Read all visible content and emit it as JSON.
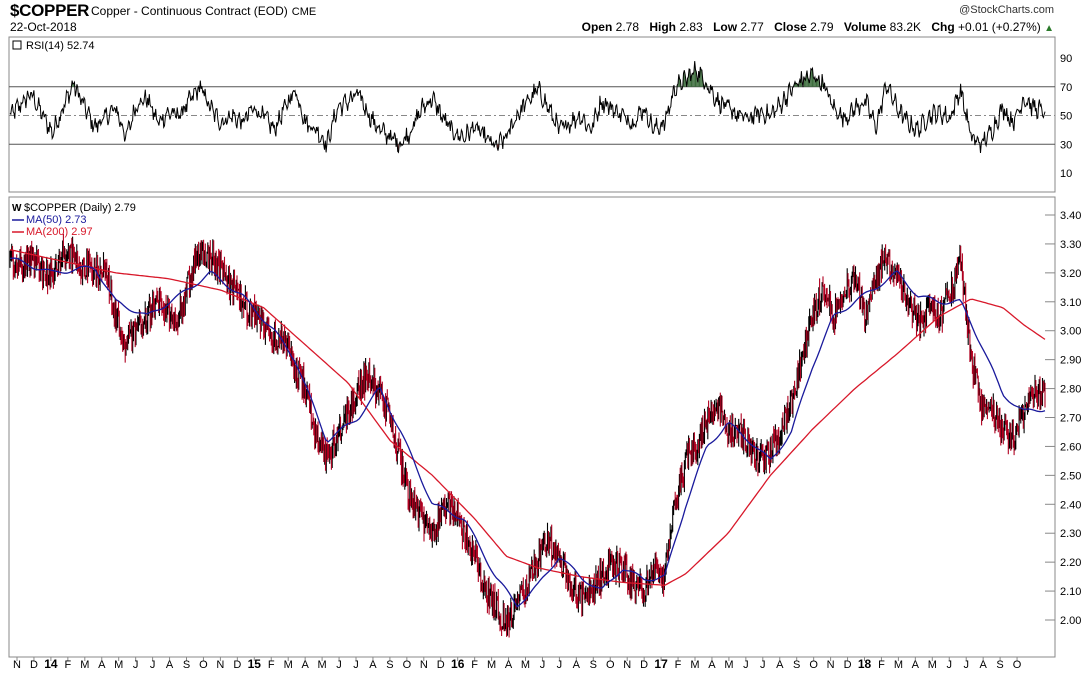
{
  "header": {
    "symbol": "$COPPER",
    "description": "Copper - Continuous Contract (EOD)",
    "exchange": "CME",
    "date": "22-Oct-2018",
    "brand": "@StockCharts.com",
    "open_label": "Open",
    "open": "2.78",
    "high_label": "High",
    "high": "2.83",
    "low_label": "Low",
    "low": "2.77",
    "close_label": "Close",
    "close": "2.79",
    "volume_label": "Volume",
    "volume": "83.2K",
    "chg_label": "Chg",
    "chg": "+0.01 (+0.27%)",
    "chg_arrow": "▲"
  },
  "rsi_panel": {
    "legend": "RSI(14) 52.74",
    "overbought": 70,
    "oversold": 30,
    "center": 50,
    "ylim": [
      0,
      100
    ],
    "ticks": [
      "90",
      "70",
      "50",
      "30",
      "10"
    ]
  },
  "price_panel": {
    "legend_symbol": "$COPPER (Daily) 2.79",
    "legend_ma50": "MA(50) 2.73",
    "legend_ma200": "MA(200) 2.97",
    "ticks": [
      "3.40",
      "3.30",
      "3.20",
      "3.10",
      "3.00",
      "2.90",
      "2.80",
      "2.70",
      "2.60",
      "2.50",
      "2.40",
      "2.30",
      "2.20",
      "2.10",
      "2.00"
    ]
  },
  "x_axis": {
    "labels": [
      {
        "t": "N",
        "year": false
      },
      {
        "t": "D",
        "year": false
      },
      {
        "t": "14",
        "year": true
      },
      {
        "t": "F",
        "year": false
      },
      {
        "t": "M",
        "year": false
      },
      {
        "t": "A",
        "year": false
      },
      {
        "t": "M",
        "year": false
      },
      {
        "t": "J",
        "year": false
      },
      {
        "t": "J",
        "year": false
      },
      {
        "t": "A",
        "year": false
      },
      {
        "t": "S",
        "year": false
      },
      {
        "t": "O",
        "year": false
      },
      {
        "t": "N",
        "year": false
      },
      {
        "t": "D",
        "year": false
      },
      {
        "t": "15",
        "year": true
      },
      {
        "t": "F",
        "year": false
      },
      {
        "t": "M",
        "year": false
      },
      {
        "t": "A",
        "year": false
      },
      {
        "t": "M",
        "year": false
      },
      {
        "t": "J",
        "year": false
      },
      {
        "t": "J",
        "year": false
      },
      {
        "t": "A",
        "year": false
      },
      {
        "t": "S",
        "year": false
      },
      {
        "t": "O",
        "year": false
      },
      {
        "t": "N",
        "year": false
      },
      {
        "t": "D",
        "year": false
      },
      {
        "t": "16",
        "year": true
      },
      {
        "t": "F",
        "year": false
      },
      {
        "t": "M",
        "year": false
      },
      {
        "t": "A",
        "year": false
      },
      {
        "t": "M",
        "year": false
      },
      {
        "t": "J",
        "year": false
      },
      {
        "t": "J",
        "year": false
      },
      {
        "t": "A",
        "year": false
      },
      {
        "t": "S",
        "year": false
      },
      {
        "t": "O",
        "year": false
      },
      {
        "t": "N",
        "year": false
      },
      {
        "t": "D",
        "year": false
      },
      {
        "t": "17",
        "year": true
      },
      {
        "t": "F",
        "year": false
      },
      {
        "t": "M",
        "year": false
      },
      {
        "t": "A",
        "year": false
      },
      {
        "t": "M",
        "year": false
      },
      {
        "t": "J",
        "year": false
      },
      {
        "t": "J",
        "year": false
      },
      {
        "t": "A",
        "year": false
      },
      {
        "t": "S",
        "year": false
      },
      {
        "t": "O",
        "year": false
      },
      {
        "t": "N",
        "year": false
      },
      {
        "t": "D",
        "year": false
      },
      {
        "t": "18",
        "year": true
      },
      {
        "t": "F",
        "year": false
      },
      {
        "t": "M",
        "year": false
      },
      {
        "t": "A",
        "year": false
      },
      {
        "t": "M",
        "year": false
      },
      {
        "t": "J",
        "year": false
      },
      {
        "t": "J",
        "year": false
      },
      {
        "t": "A",
        "year": false
      },
      {
        "t": "S",
        "year": false
      },
      {
        "t": "O",
        "year": false
      }
    ]
  },
  "chart_data": {
    "type": "line",
    "title": "$COPPER Copper - Continuous Contract (EOD) CME",
    "xlabel": "",
    "ylabel": "",
    "x_range": [
      "2013-11",
      "2018-10"
    ],
    "ylim": [
      1.92,
      3.42
    ],
    "price_anchors": [
      [
        0,
        3.22
      ],
      [
        2,
        3.25
      ],
      [
        4,
        3.18
      ],
      [
        5,
        3.27
      ],
      [
        6,
        3.25
      ],
      [
        8,
        3.2
      ],
      [
        9,
        3.22
      ],
      [
        10,
        3.05
      ],
      [
        11,
        2.95
      ],
      [
        12,
        3.02
      ],
      [
        13,
        3.05
      ],
      [
        14,
        3.1
      ],
      [
        15,
        3.05
      ],
      [
        16,
        3.05
      ],
      [
        17,
        3.18
      ],
      [
        18,
        3.28
      ],
      [
        19,
        3.25
      ],
      [
        20,
        3.22
      ],
      [
        21,
        3.15
      ],
      [
        22,
        3.1
      ],
      [
        23,
        3.05
      ],
      [
        24,
        3.02
      ],
      [
        25,
        2.98
      ],
      [
        26,
        2.95
      ],
      [
        27,
        2.88
      ],
      [
        28,
        2.8
      ],
      [
        29,
        2.62
      ],
      [
        30,
        2.55
      ],
      [
        31,
        2.65
      ],
      [
        32,
        2.72
      ],
      [
        33,
        2.8
      ],
      [
        34,
        2.85
      ],
      [
        35,
        2.78
      ],
      [
        36,
        2.7
      ],
      [
        37,
        2.55
      ],
      [
        38,
        2.42
      ],
      [
        39,
        2.35
      ],
      [
        40,
        2.3
      ],
      [
        41,
        2.4
      ],
      [
        42,
        2.38
      ],
      [
        43,
        2.3
      ],
      [
        44,
        2.22
      ],
      [
        45,
        2.1
      ],
      [
        46,
        2.05
      ],
      [
        47,
        1.98
      ],
      [
        48,
        2.05
      ],
      [
        49,
        2.12
      ],
      [
        50,
        2.22
      ],
      [
        51,
        2.28
      ],
      [
        52,
        2.2
      ],
      [
        53,
        2.12
      ],
      [
        54,
        2.08
      ],
      [
        55,
        2.08
      ],
      [
        56,
        2.15
      ],
      [
        57,
        2.2
      ],
      [
        58,
        2.18
      ],
      [
        59,
        2.12
      ],
      [
        60,
        2.1
      ],
      [
        61,
        2.18
      ],
      [
        62,
        2.15
      ],
      [
        63,
        2.4
      ],
      [
        64,
        2.55
      ],
      [
        65,
        2.6
      ],
      [
        66,
        2.7
      ],
      [
        67,
        2.75
      ],
      [
        68,
        2.65
      ],
      [
        69,
        2.65
      ],
      [
        70,
        2.6
      ],
      [
        71,
        2.55
      ],
      [
        72,
        2.58
      ],
      [
        73,
        2.65
      ],
      [
        74,
        2.75
      ],
      [
        75,
        2.9
      ],
      [
        76,
        3.05
      ],
      [
        77,
        3.15
      ],
      [
        78,
        3.05
      ],
      [
        79,
        3.15
      ],
      [
        80,
        3.18
      ],
      [
        81,
        3.05
      ],
      [
        82,
        3.2
      ],
      [
        83,
        3.25
      ],
      [
        84,
        3.18
      ],
      [
        85,
        3.1
      ],
      [
        86,
        3.02
      ],
      [
        87,
        3.08
      ],
      [
        88,
        3.05
      ],
      [
        89,
        3.12
      ],
      [
        90,
        3.25
      ],
      [
        91,
        2.9
      ],
      [
        92,
        2.75
      ],
      [
        93,
        2.72
      ],
      [
        94,
        2.65
      ],
      [
        95,
        2.62
      ],
      [
        96,
        2.72
      ],
      [
        97,
        2.78
      ],
      [
        98,
        2.79
      ]
    ],
    "ma50_anchors": [
      [
        0,
        3.25
      ],
      [
        4,
        3.2
      ],
      [
        8,
        3.22
      ],
      [
        10,
        3.1
      ],
      [
        13,
        3.05
      ],
      [
        16,
        3.12
      ],
      [
        19,
        3.2
      ],
      [
        22,
        3.12
      ],
      [
        25,
        3.0
      ],
      [
        27,
        2.9
      ],
      [
        30,
        2.62
      ],
      [
        33,
        2.7
      ],
      [
        35,
        2.8
      ],
      [
        37,
        2.65
      ],
      [
        40,
        2.4
      ],
      [
        43,
        2.35
      ],
      [
        46,
        2.15
      ],
      [
        48,
        2.05
      ],
      [
        50,
        2.12
      ],
      [
        52,
        2.22
      ],
      [
        54,
        2.15
      ],
      [
        56,
        2.1
      ],
      [
        58,
        2.18
      ],
      [
        60,
        2.14
      ],
      [
        62,
        2.15
      ],
      [
        64,
        2.4
      ],
      [
        66,
        2.6
      ],
      [
        68,
        2.68
      ],
      [
        70,
        2.62
      ],
      [
        72,
        2.55
      ],
      [
        74,
        2.65
      ],
      [
        76,
        2.88
      ],
      [
        78,
        3.05
      ],
      [
        80,
        3.1
      ],
      [
        82,
        3.15
      ],
      [
        84,
        3.2
      ],
      [
        86,
        3.12
      ],
      [
        88,
        3.1
      ],
      [
        90,
        3.1
      ],
      [
        92,
        2.95
      ],
      [
        94,
        2.78
      ],
      [
        96,
        2.72
      ],
      [
        98,
        2.73
      ]
    ],
    "ma200_anchors": [
      [
        0,
        3.28
      ],
      [
        5,
        3.24
      ],
      [
        10,
        3.2
      ],
      [
        15,
        3.18
      ],
      [
        20,
        3.14
      ],
      [
        24,
        3.08
      ],
      [
        28,
        2.95
      ],
      [
        32,
        2.82
      ],
      [
        36,
        2.62
      ],
      [
        40,
        2.5
      ],
      [
        44,
        2.35
      ],
      [
        47,
        2.22
      ],
      [
        50,
        2.18
      ],
      [
        54,
        2.15
      ],
      [
        58,
        2.13
      ],
      [
        62,
        2.12
      ],
      [
        64,
        2.16
      ],
      [
        68,
        2.3
      ],
      [
        72,
        2.5
      ],
      [
        76,
        2.66
      ],
      [
        80,
        2.8
      ],
      [
        84,
        2.92
      ],
      [
        88,
        3.05
      ],
      [
        91,
        3.11
      ],
      [
        94,
        3.08
      ],
      [
        96,
        3.02
      ],
      [
        98,
        2.97
      ]
    ],
    "rsi_anchors": [
      [
        0,
        50
      ],
      [
        2,
        65
      ],
      [
        4,
        38
      ],
      [
        5,
        55
      ],
      [
        6,
        72
      ],
      [
        8,
        42
      ],
      [
        10,
        55
      ],
      [
        11,
        35
      ],
      [
        12,
        58
      ],
      [
        13,
        62
      ],
      [
        14,
        45
      ],
      [
        15,
        52
      ],
      [
        16,
        50
      ],
      [
        17,
        60
      ],
      [
        18,
        70
      ],
      [
        19,
        55
      ],
      [
        20,
        45
      ],
      [
        21,
        50
      ],
      [
        22,
        45
      ],
      [
        23,
        55
      ],
      [
        24,
        50
      ],
      [
        25,
        40
      ],
      [
        26,
        55
      ],
      [
        27,
        68
      ],
      [
        28,
        45
      ],
      [
        29,
        40
      ],
      [
        30,
        30
      ],
      [
        31,
        55
      ],
      [
        32,
        60
      ],
      [
        33,
        65
      ],
      [
        34,
        50
      ],
      [
        35,
        40
      ],
      [
        36,
        35
      ],
      [
        37,
        30
      ],
      [
        38,
        40
      ],
      [
        39,
        55
      ],
      [
        40,
        62
      ],
      [
        41,
        48
      ],
      [
        42,
        38
      ],
      [
        43,
        35
      ],
      [
        44,
        42
      ],
      [
        45,
        35
      ],
      [
        46,
        28
      ],
      [
        47,
        35
      ],
      [
        48,
        50
      ],
      [
        49,
        60
      ],
      [
        50,
        68
      ],
      [
        51,
        55
      ],
      [
        52,
        40
      ],
      [
        53,
        45
      ],
      [
        54,
        50
      ],
      [
        55,
        40
      ],
      [
        56,
        60
      ],
      [
        57,
        55
      ],
      [
        58,
        50
      ],
      [
        59,
        45
      ],
      [
        60,
        55
      ],
      [
        61,
        40
      ],
      [
        62,
        45
      ],
      [
        63,
        70
      ],
      [
        64,
        75
      ],
      [
        65,
        82
      ],
      [
        66,
        72
      ],
      [
        67,
        60
      ],
      [
        68,
        55
      ],
      [
        69,
        50
      ],
      [
        70,
        48
      ],
      [
        71,
        52
      ],
      [
        72,
        50
      ],
      [
        73,
        58
      ],
      [
        74,
        68
      ],
      [
        75,
        75
      ],
      [
        76,
        78
      ],
      [
        77,
        72
      ],
      [
        78,
        55
      ],
      [
        79,
        48
      ],
      [
        80,
        55
      ],
      [
        81,
        60
      ],
      [
        82,
        42
      ],
      [
        83,
        72
      ],
      [
        84,
        55
      ],
      [
        85,
        45
      ],
      [
        86,
        40
      ],
      [
        87,
        50
      ],
      [
        88,
        52
      ],
      [
        89,
        48
      ],
      [
        90,
        68
      ],
      [
        91,
        35
      ],
      [
        92,
        30
      ],
      [
        93,
        40
      ],
      [
        94,
        55
      ],
      [
        95,
        45
      ],
      [
        96,
        62
      ],
      [
        97,
        55
      ],
      [
        98,
        52.74
      ]
    ],
    "colors": {
      "price": "#000000",
      "down_bar": "#b00020",
      "ma50": "#1a1a9c",
      "ma200": "#d8182a",
      "rsi_fill_up": "#3a6b3a",
      "rsi_fill_down": "#8a3a3a"
    }
  }
}
